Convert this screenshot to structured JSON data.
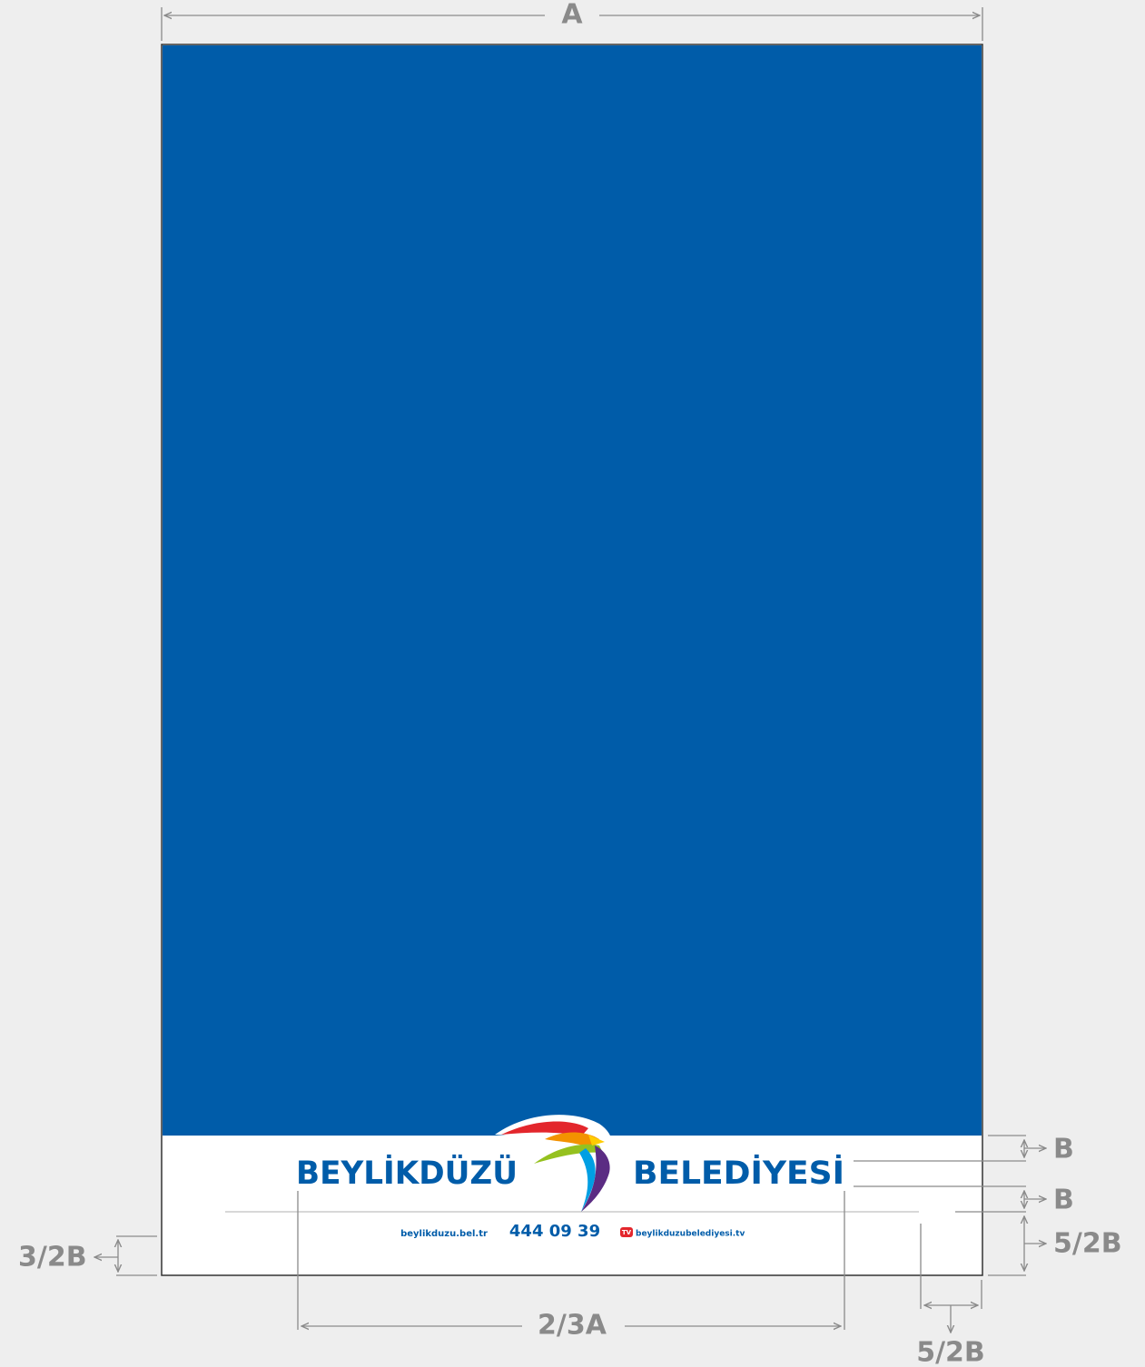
{
  "dimensions": {
    "width": "A",
    "top_margin": "B",
    "footer_gap": "B",
    "footer_height": "5/2B",
    "contact_offset": "3/2B",
    "logo_width": "2/3A",
    "side_margin": "5/2B"
  },
  "logo": {
    "left_word": "BEYLİKDÜZÜ",
    "right_word": "BELEDİYESİ"
  },
  "footer": {
    "website": "beylikduzu.bel.tr",
    "phone": "444 09 39",
    "tv_badge": "TV",
    "tv_site": "beylikduzubelediyesi.tv"
  }
}
